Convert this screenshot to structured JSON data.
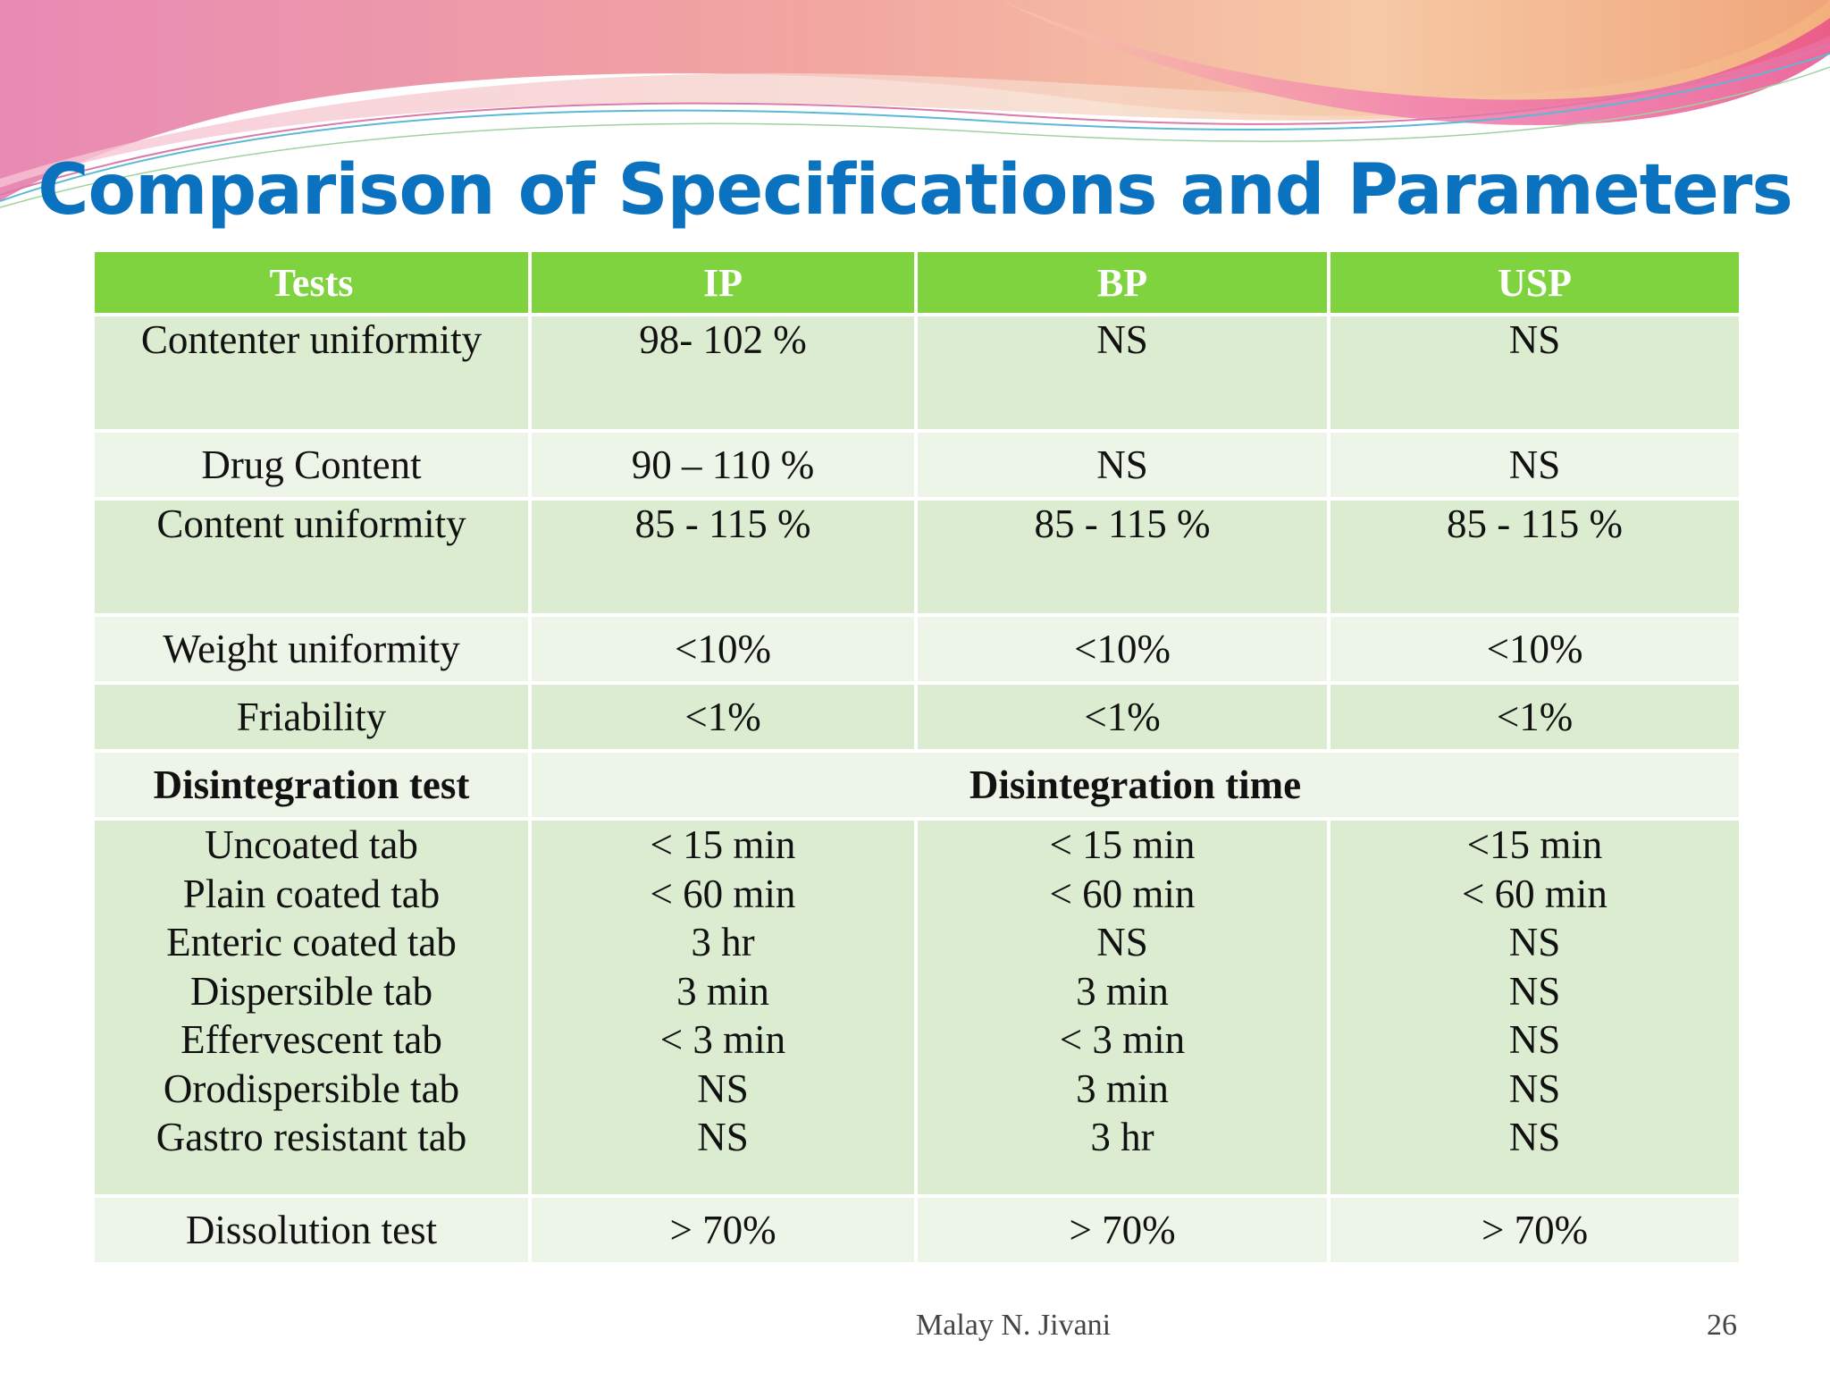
{
  "slide": {
    "title": "Comparison of Specifications and Parameters",
    "author": "Malay N. Jivani",
    "page_number": "26",
    "colors": {
      "title": "#0b72bf",
      "header_bg": "#7ed33f",
      "row_dark": "#dbecd0",
      "row_light": "#edf5e8"
    }
  },
  "table": {
    "headers": [
      "Tests",
      "IP",
      "BP",
      "USP"
    ],
    "rows": [
      {
        "test": "Contenter uniformity",
        "ip": "98-  102 %",
        "bp": "NS",
        "usp": "NS"
      },
      {
        "test": "Drug Content",
        "ip": "90 – 110 %",
        "bp": "NS",
        "usp": "NS"
      },
      {
        "test": "Content uniformity",
        "ip": "85 - 115 %",
        "bp": "85 - 115 %",
        "usp": "85 - 115 %"
      },
      {
        "test": "Weight uniformity",
        "ip": "<10%",
        "bp": "<10%",
        "usp": "<10%"
      },
      {
        "test": "Friability",
        "ip": "<1%",
        "bp": "<1%",
        "usp": "<1%"
      }
    ],
    "disintegration": {
      "label": "Disintegration test",
      "span_label": "Disintegration time",
      "tests": [
        "Uncoated tab",
        "Plain coated tab",
        "Enteric coated tab",
        "Dispersible tab",
        "Effervescent tab",
        "Orodispersible tab",
        "Gastro resistant tab"
      ],
      "ip": [
        "< 15 min",
        "< 60 min",
        "3 hr",
        "3 min",
        "< 3 min",
        "NS",
        "NS"
      ],
      "bp": [
        "< 15 min",
        "< 60 min",
        "NS",
        "3 min",
        "< 3 min",
        "3 min",
        "3 hr"
      ],
      "usp": [
        "<15 min",
        "< 60 min",
        "NS",
        "NS",
        "NS",
        "NS",
        "NS"
      ]
    },
    "dissolution": {
      "test": "Dissolution test",
      "ip": "> 70%",
      "bp": "> 70%",
      "usp": "> 70%"
    }
  }
}
